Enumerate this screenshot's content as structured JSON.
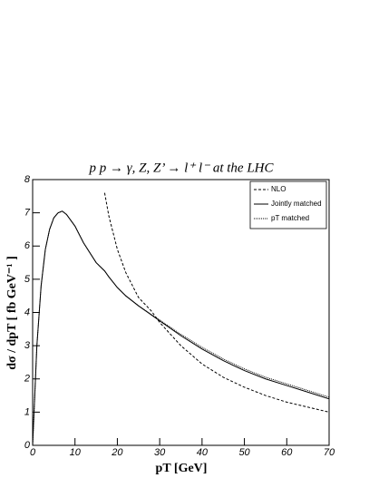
{
  "chart_data": {
    "type": "line",
    "title": "p p → γ, Z, Z’ → l⁺ l⁻ at the LHC",
    "x_label": "pT [GeV]",
    "y_label": "dσ / dpT [ fb GeV⁻¹ ]",
    "x": [
      0,
      1,
      2,
      3,
      4,
      5,
      6,
      7,
      8,
      10,
      12,
      15,
      17,
      18,
      20,
      22,
      25,
      28,
      30,
      35,
      40,
      45,
      50,
      55,
      60,
      65,
      70
    ],
    "series": [
      {
        "name": "NLO",
        "color": "#000000",
        "style": "dashed",
        "values": [
          null,
          null,
          null,
          null,
          null,
          null,
          null,
          null,
          null,
          null,
          null,
          null,
          7.6,
          6.9,
          5.9,
          5.2,
          4.45,
          4.05,
          3.7,
          3.0,
          2.45,
          2.05,
          1.75,
          1.5,
          1.3,
          1.15,
          1.0
        ]
      },
      {
        "name": "Jointly matched",
        "color": "#000000",
        "style": "solid",
        "values": [
          0,
          3.0,
          4.8,
          5.9,
          6.5,
          6.85,
          7.0,
          7.05,
          6.95,
          6.6,
          6.1,
          5.5,
          5.25,
          5.07,
          4.75,
          4.5,
          4.2,
          3.93,
          3.75,
          3.3,
          2.9,
          2.55,
          2.25,
          2.0,
          1.8,
          1.6,
          1.4
        ]
      },
      {
        "name": "pT matched",
        "color": "#000000",
        "style": "dotted",
        "values": [
          0,
          3.0,
          4.8,
          5.9,
          6.5,
          6.85,
          7.0,
          7.05,
          6.95,
          6.6,
          6.1,
          5.5,
          5.25,
          5.07,
          4.75,
          4.5,
          4.2,
          3.94,
          3.77,
          3.34,
          2.95,
          2.6,
          2.3,
          2.05,
          1.85,
          1.65,
          1.45
        ]
      }
    ],
    "xlim": [
      0,
      70
    ],
    "xticks": [
      0,
      10,
      20,
      30,
      40,
      50,
      60,
      70
    ],
    "ylim": [
      0,
      8
    ],
    "yticks": [
      0,
      1,
      2,
      3,
      4,
      5,
      6,
      7,
      8
    ],
    "legend": "top-right"
  }
}
